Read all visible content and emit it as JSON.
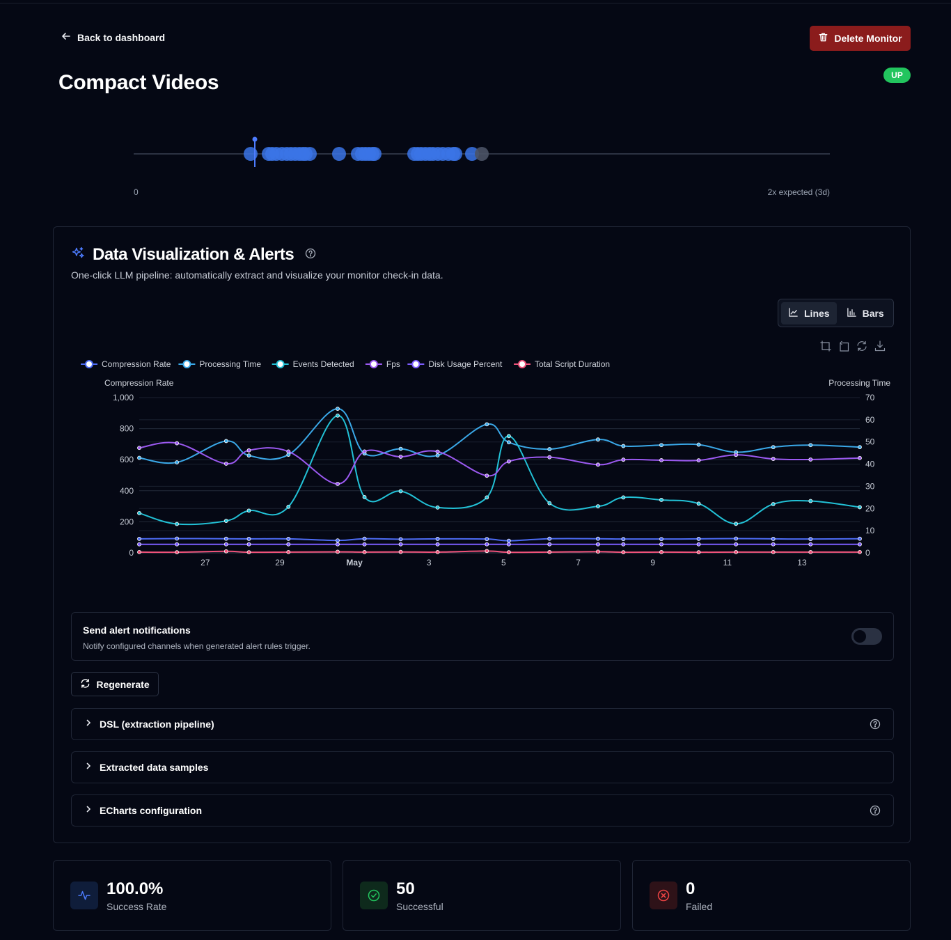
{
  "header": {
    "back_label": "Back to dashboard",
    "delete_label": "Delete Monitor",
    "title": "Compact Videos",
    "status": "UP"
  },
  "timeline": {
    "start_label": "0",
    "end_label": "2x expected (3d)",
    "checkins": [
      0.168,
      0.194,
      0.199,
      0.205,
      0.213,
      0.22,
      0.226,
      0.232,
      0.238,
      0.243,
      0.247,
      0.253,
      0.295,
      0.322,
      0.328,
      0.333,
      0.338,
      0.343,
      0.346,
      0.403,
      0.408,
      0.413,
      0.419,
      0.425,
      0.43,
      0.437,
      0.444,
      0.452,
      0.459,
      0.462,
      0.486,
      0.5
    ],
    "marker": 0.174
  },
  "viz": {
    "title": "Data Visualization & Alerts",
    "description": "One-click LLM pipeline: automatically extract and visualize your monitor check-in data.",
    "toggle_lines": "Lines",
    "toggle_bars": "Bars"
  },
  "alerts": {
    "title": "Send alert notifications",
    "description": "Notify configured channels when generated alert rules trigger.",
    "enabled": false
  },
  "regenerate_label": "Regenerate",
  "accordions": [
    {
      "label": "DSL (extraction pipeline)"
    },
    {
      "label": "Extracted data samples"
    },
    {
      "label": "ECharts configuration"
    }
  ],
  "stats": [
    {
      "value": "100.0%",
      "label": "Success Rate"
    },
    {
      "value": "50",
      "label": "Successful"
    },
    {
      "value": "0",
      "label": "Failed"
    }
  ],
  "colors": {
    "compression_rate": "#4d6cf5",
    "processing_time": "#3aa8e8",
    "events_detected": "#22c1d6",
    "fps": "#9b59f0",
    "disk_usage_percent": "#7c5cff",
    "total_script_duration": "#f0527a",
    "success_accent": "#22c55e",
    "danger_accent": "#ef4444"
  },
  "chart_data": {
    "type": "line",
    "legend": [
      "Compression Rate",
      "Processing Time",
      "Events Detected",
      "Fps",
      "Disk Usage Percent",
      "Total Script Duration"
    ],
    "legend_position": "top-left",
    "ylabel_left": "Compression Rate",
    "ylabel_right": "Processing Time",
    "y_left_range": [
      0,
      1000
    ],
    "y_left_ticks": [
      0,
      200,
      400,
      600,
      800,
      1000
    ],
    "y_left_tick_labels": [
      "0",
      "200",
      "400",
      "600",
      "800",
      "1,000"
    ],
    "y_right_range": [
      0,
      70
    ],
    "y_right_ticks": [
      0,
      10,
      20,
      30,
      40,
      50,
      60,
      70
    ],
    "x_tick_labels": [
      "27",
      "29",
      "May",
      "3",
      "5",
      "7",
      "9",
      "11",
      "13"
    ],
    "x_tick_positions": [
      2,
      4,
      6,
      8,
      10,
      12,
      14,
      16,
      18
    ],
    "x_range": [
      0.23,
      19.55
    ],
    "grid": true,
    "x": [
      0.23,
      1.24,
      2.56,
      3.17,
      4.23,
      5.55,
      6.27,
      7.24,
      8.23,
      9.55,
      10.14,
      11.23,
      12.53,
      13.21,
      14.23,
      15.23,
      16.23,
      17.23,
      18.23,
      19.55
    ],
    "series": [
      {
        "name": "Compression Rate",
        "axis": "left",
        "values": [
          90,
          92,
          91,
          90,
          90,
          80,
          91,
          88,
          90,
          89,
          78,
          91,
          91,
          89,
          89,
          90,
          92,
          90,
          89,
          91
        ]
      },
      {
        "name": "Processing Time",
        "axis": "left",
        "values": [
          612,
          583,
          720,
          627,
          632,
          928,
          640,
          670,
          628,
          828,
          712,
          668,
          730,
          688,
          694,
          697,
          648,
          681,
          694,
          681
        ]
      },
      {
        "name": "Events Detected",
        "axis": "left",
        "values": [
          256,
          186,
          206,
          272,
          297,
          884,
          359,
          397,
          292,
          357,
          752,
          320,
          300,
          357,
          341,
          317,
          187,
          314,
          334,
          294
        ]
      },
      {
        "name": "Fps",
        "axis": "left",
        "values": [
          676,
          706,
          574,
          660,
          653,
          444,
          653,
          619,
          652,
          497,
          589,
          616,
          568,
          600,
          597,
          596,
          631,
          605,
          601,
          611
        ]
      },
      {
        "name": "Disk Usage Percent",
        "axis": "left",
        "values": [
          55,
          55,
          55,
          55,
          55,
          55,
          55,
          55,
          55,
          55,
          55,
          55,
          55,
          55,
          55,
          55,
          55,
          55,
          55,
          55
        ]
      },
      {
        "name": "Total Script Duration",
        "axis": "left",
        "values": [
          5,
          4,
          10,
          4,
          5,
          7,
          5,
          6,
          5,
          12,
          4,
          5,
          8,
          4,
          5,
          4,
          5,
          5,
          5,
          5
        ]
      }
    ]
  }
}
